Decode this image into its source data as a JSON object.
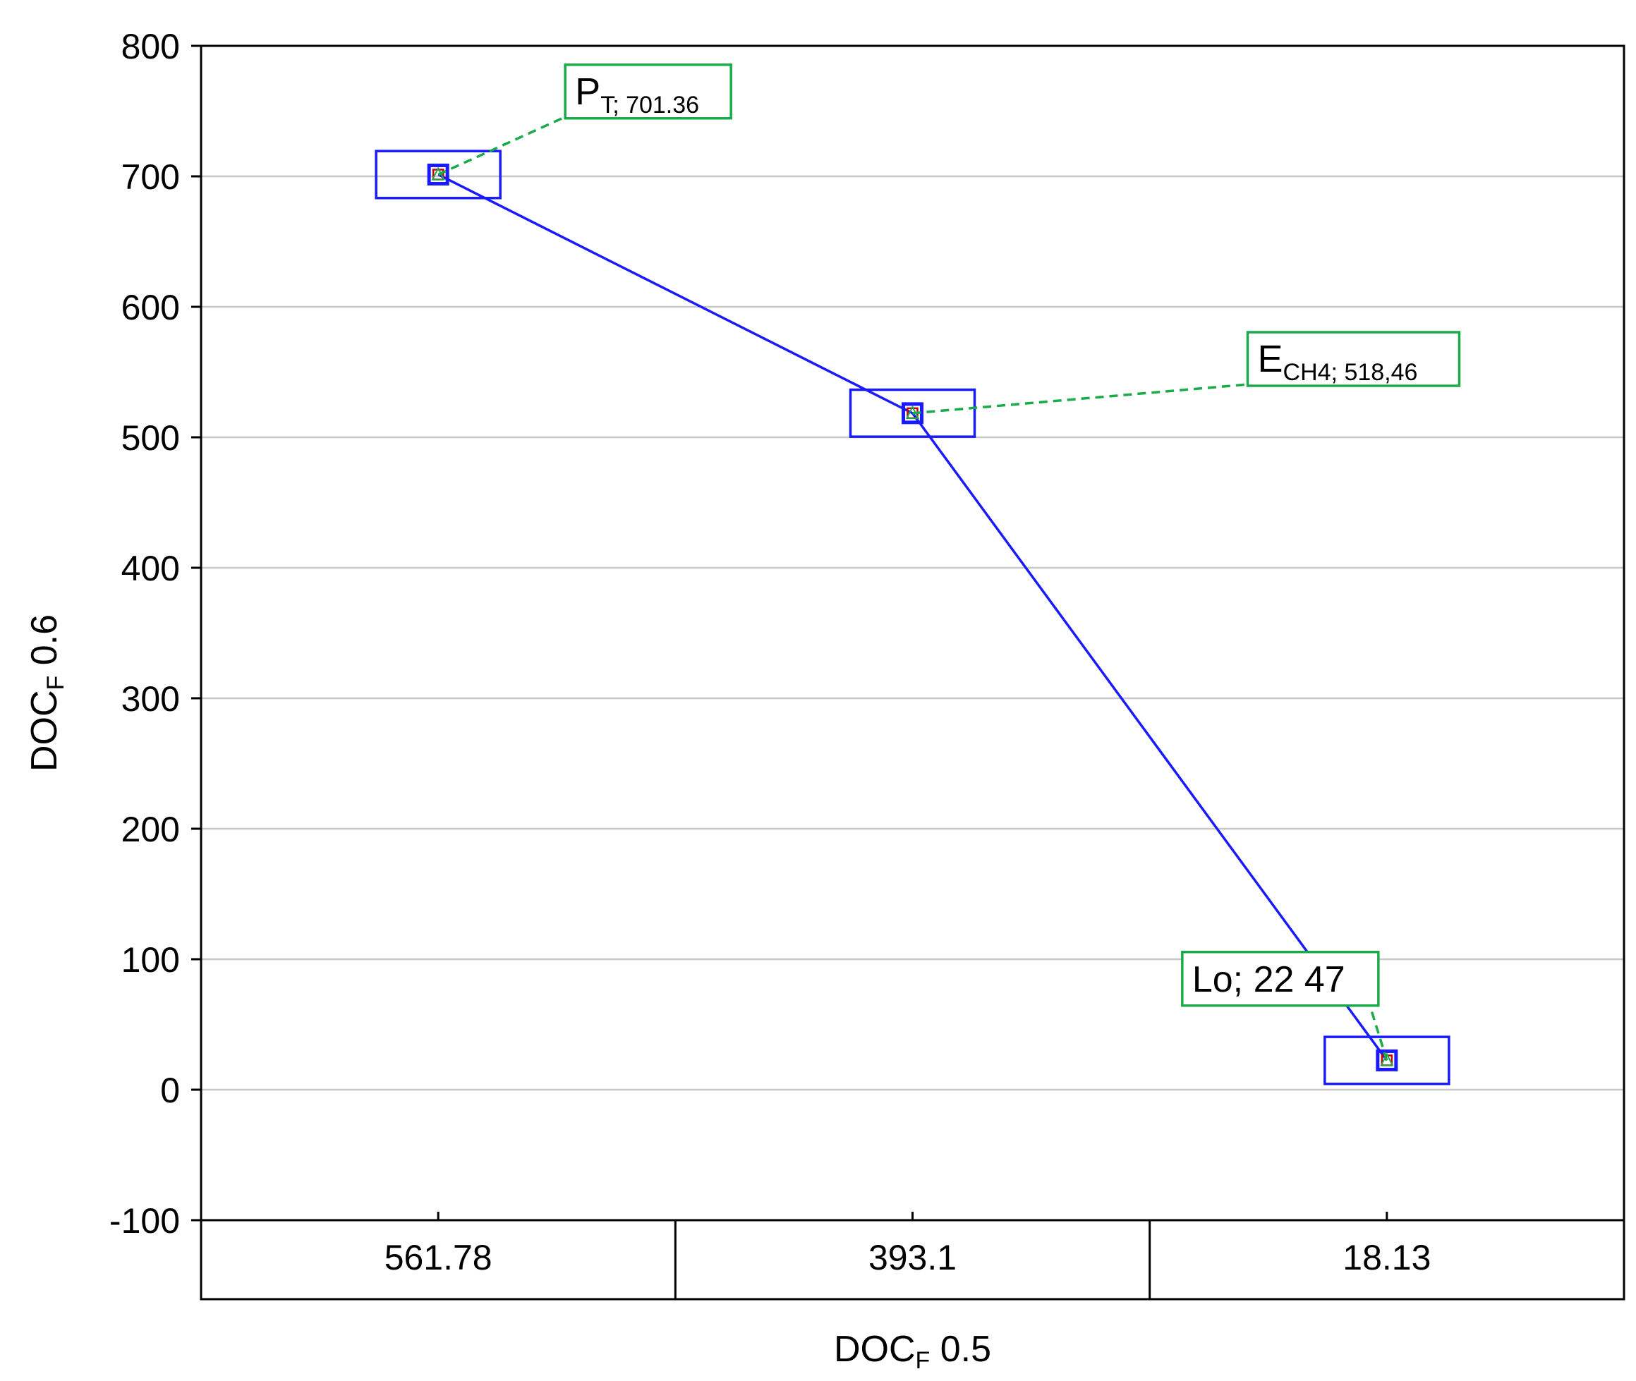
{
  "chart_data": {
    "type": "line",
    "xlabel": {
      "main": "DOC",
      "sub": "F",
      "suffix": " 0.5"
    },
    "ylabel": {
      "main": "DOC",
      "sub": "F",
      "suffix": " 0.6"
    },
    "ylim": [
      -100,
      800
    ],
    "yticks": [
      -100,
      0,
      100,
      200,
      300,
      400,
      500,
      600,
      700,
      800
    ],
    "categories": [
      "561.78",
      "393.1",
      "18.13"
    ],
    "series": [
      {
        "name": "DOCF",
        "values": [
          701.36,
          518.46,
          22.47
        ],
        "color": "#1a1aff"
      }
    ],
    "box_half_range": 18,
    "annotations": [
      {
        "main": "P",
        "sub": "T; 701.36",
        "after": "",
        "target": 0,
        "label_y": 765
      },
      {
        "main": "E",
        "sub": "CH4; 518,46",
        "after": "",
        "target": 1,
        "label_y": 560
      },
      {
        "main": "Lo; 22 47",
        "sub": "",
        "after": "",
        "target": 2,
        "label_y": 85
      }
    ],
    "grid": true,
    "colors": {
      "line": "#1a1aff",
      "annotation": "#1aaa4a",
      "marker_inner": "#cc0000",
      "grid": "#c8c8c8"
    }
  }
}
